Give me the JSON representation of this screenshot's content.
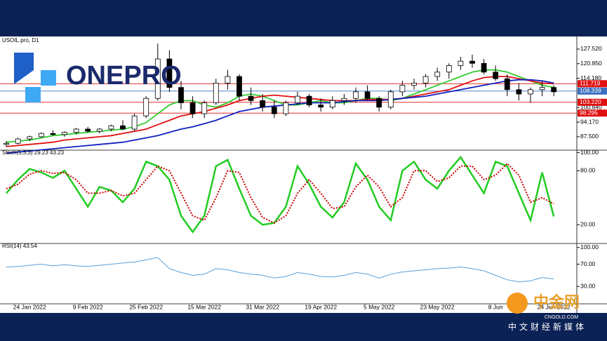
{
  "chart_data": [
    {
      "type": "candlestick",
      "title": "USOIL.pro, D1",
      "categories": [
        null,
        null,
        "24 Jan 2022",
        null,
        null,
        null,
        null,
        "9 Feb 2022",
        null,
        null,
        null,
        null,
        "25 Feb 2022",
        null,
        null,
        null,
        null,
        "15 Mar 2022",
        null,
        null,
        null,
        null,
        "31 Mar 2022",
        null,
        null,
        null,
        null,
        "19 Apr 2022",
        null,
        null,
        null,
        null,
        "5 May 2022",
        null,
        null,
        null,
        null,
        "23 May 2022",
        null,
        null,
        null,
        null,
        "8 Jun",
        null,
        null,
        null,
        null,
        "24 Jun 2022"
      ],
      "open": [
        84,
        84.5,
        86.5,
        87.5,
        89,
        88.5,
        89.5,
        91,
        90,
        91,
        92.5,
        91,
        97,
        105,
        123,
        110,
        103,
        98,
        103,
        112,
        115,
        106,
        104,
        101,
        98,
        103,
        106,
        102,
        101,
        104,
        105,
        108,
        105,
        101,
        108,
        111,
        112,
        115,
        117,
        120,
        122,
        121,
        117,
        114,
        109,
        107,
        109,
        110
      ],
      "high": [
        85.5,
        87,
        88,
        89.5,
        90.5,
        90,
        91.5,
        92,
        91.5,
        93,
        95,
        98,
        106,
        130,
        127,
        113,
        106,
        104,
        114,
        118,
        116,
        110,
        107,
        104,
        104,
        108,
        107,
        105,
        106,
        107,
        110,
        111,
        106,
        109,
        113,
        114,
        116,
        119,
        121,
        124,
        125,
        123,
        120,
        116,
        112,
        110,
        113,
        111
      ],
      "low": [
        83,
        84,
        85.5,
        87,
        88,
        87.5,
        88.5,
        89.5,
        89,
        90,
        90.5,
        90,
        96,
        104,
        108,
        100,
        96,
        96,
        102,
        109,
        104,
        102,
        99,
        96,
        97,
        102,
        101,
        99,
        100,
        102,
        103,
        104,
        99,
        100,
        106,
        109,
        110,
        113,
        114,
        118,
        119,
        116,
        113,
        106,
        104,
        103,
        106,
        106
      ],
      "close": [
        84.5,
        86.5,
        87.5,
        89,
        88.5,
        89.5,
        91,
        90,
        91,
        92.5,
        91,
        97,
        105,
        123,
        110,
        103,
        98,
        103,
        112,
        115,
        106,
        104,
        101,
        98,
        103,
        106,
        102,
        101,
        104,
        105,
        108,
        105,
        101,
        108,
        111,
        112,
        115,
        117,
        120,
        122,
        121,
        117,
        114,
        109,
        107,
        109,
        110,
        108
      ],
      "lines": [
        {
          "color": "#33cc33",
          "values": [
            85,
            85.5,
            86,
            87,
            88,
            88.5,
            89,
            89.5,
            90,
            90.5,
            91,
            92,
            94,
            98,
            102,
            104,
            104,
            102,
            101,
            103,
            106,
            107,
            106,
            104,
            102,
            102,
            103,
            104,
            103,
            103,
            104,
            105,
            105,
            104,
            105,
            107,
            109,
            111,
            113,
            115,
            117,
            118,
            118,
            117,
            115,
            113,
            111,
            110
          ]
        },
        {
          "color": "#e01010",
          "values": [
            83,
            83.5,
            84,
            84.5,
            85,
            86,
            86.5,
            87,
            87.5,
            88,
            89,
            90,
            91,
            93,
            95,
            97,
            98,
            99,
            100.5,
            102,
            104,
            105,
            106,
            106.5,
            106,
            105.5,
            105,
            104.5,
            104,
            104,
            104,
            104.5,
            104.5,
            104.5,
            105,
            106,
            107,
            108,
            109,
            111,
            113,
            114.5,
            115,
            115,
            114,
            113,
            112,
            111.7
          ]
        },
        {
          "color": "#1020c0",
          "values": [
            80,
            80.5,
            81,
            81.5,
            82,
            82.5,
            83,
            83.5,
            84,
            84.5,
            85,
            86,
            87,
            88,
            89.5,
            91,
            92,
            93.5,
            95,
            97,
            99,
            100,
            101,
            101.5,
            102,
            102.5,
            103,
            103,
            103,
            103.5,
            104,
            104,
            104,
            104.5,
            105,
            105.5,
            106,
            107,
            108,
            109,
            110,
            111,
            112,
            113,
            113.5,
            113.5,
            113,
            112
          ]
        }
      ],
      "levels": [
        {
          "value": 111.719,
          "color": "#e01010"
        },
        {
          "value": 108.339,
          "color": "#3a6fc0"
        },
        {
          "value": 103.22,
          "label": "103.220",
          "color": "#e01010"
        },
        {
          "value": 98.295,
          "color": "#e01010"
        }
      ],
      "ylim": [
        81.7,
        132.3
      ],
      "yticks": [
        {
          "value": 87.5,
          "label": "87.500"
        },
        {
          "value": 94.17,
          "label": "94.170"
        },
        {
          "value": 100.84,
          "label": "100.840"
        },
        {
          "value": 114.18,
          "label": "114.180"
        },
        {
          "value": 120.85,
          "label": "120.850"
        },
        {
          "value": 127.52,
          "label": "127.520"
        }
      ]
    },
    {
      "type": "line",
      "title": "Stoch(5,3,3) 29.23 43.23",
      "series": [
        {
          "color": "#22cc22",
          "width": 2.5,
          "values": [
            55,
            70,
            82,
            78,
            72,
            80,
            60,
            40,
            62,
            58,
            45,
            60,
            90,
            85,
            70,
            30,
            12,
            30,
            85,
            92,
            60,
            30,
            20,
            22,
            40,
            85,
            65,
            40,
            28,
            45,
            88,
            70,
            40,
            25,
            80,
            90,
            70,
            60,
            80,
            95,
            75,
            55,
            90,
            85,
            55,
            25,
            78,
            29.23
          ]
        },
        {
          "color": "#cc0000",
          "width": 2,
          "dash": true,
          "values": [
            60,
            65,
            76,
            80,
            77,
            78,
            70,
            55,
            55,
            58,
            52,
            55,
            70,
            85,
            80,
            55,
            30,
            25,
            50,
            80,
            78,
            50,
            28,
            22,
            30,
            55,
            70,
            55,
            38,
            40,
            62,
            75,
            62,
            40,
            50,
            80,
            80,
            68,
            72,
            85,
            85,
            70,
            75,
            88,
            75,
            45,
            50,
            43.23
          ]
        }
      ],
      "ylim": [
        0,
        102
      ],
      "yticks": [
        {
          "value": 20,
          "label": "20.00"
        },
        {
          "value": 80,
          "label": "80.00"
        },
        {
          "value": 100,
          "label": "100.00"
        }
      ]
    },
    {
      "type": "line",
      "title": "RSI(14) 43.54",
      "series": [
        {
          "color": "#5aa0d8",
          "width": 1,
          "values": [
            65,
            66,
            68,
            70,
            67,
            69,
            67,
            66,
            68,
            70,
            72,
            74,
            78,
            82,
            62,
            55,
            50,
            52,
            62,
            60,
            55,
            52,
            50,
            45,
            48,
            55,
            52,
            48,
            47,
            50,
            55,
            52,
            45,
            52,
            56,
            58,
            60,
            62,
            63,
            65,
            62,
            58,
            50,
            42,
            38,
            40,
            46,
            43.54
          ]
        }
      ],
      "ylim": [
        0,
        106
      ],
      "yticks": [
        {
          "value": 30,
          "label": "30.00"
        },
        {
          "value": 70,
          "label": "70.00"
        },
        {
          "value": 100,
          "label": "100.00"
        }
      ]
    }
  ],
  "overlay": {
    "logo": "ONEPRO",
    "watermark": "中金网",
    "watermark_site": "CNGOLD.COM",
    "watermark_slogan": "中文财经新媒体"
  }
}
